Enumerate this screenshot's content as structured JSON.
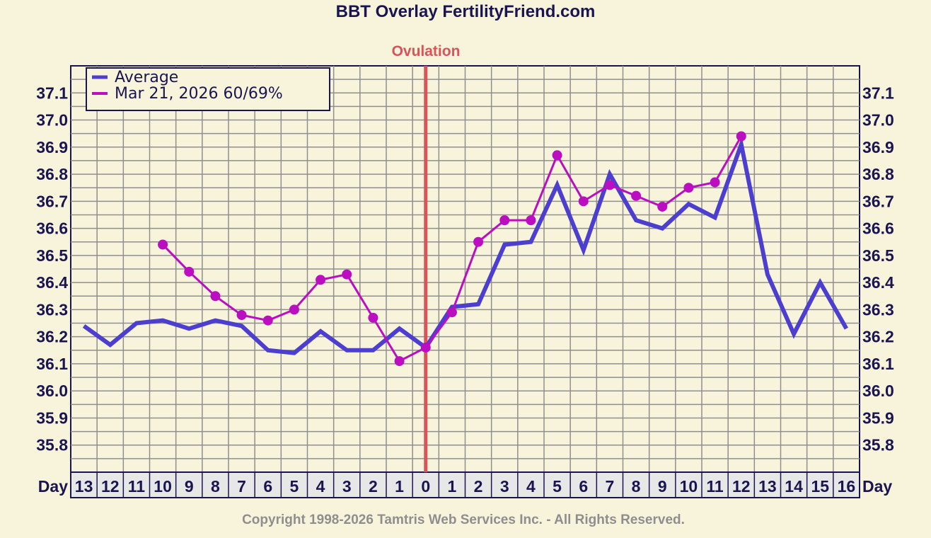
{
  "chart_data": {
    "type": "line",
    "title": "BBT Overlay FertilityFriend.com",
    "ovulation_label": "Ovulation",
    "ovulation_day": "0",
    "x_axis_label": "Day",
    "categories": [
      "13",
      "12",
      "11",
      "10",
      "9",
      "8",
      "7",
      "6",
      "5",
      "4",
      "3",
      "2",
      "1",
      "0",
      "1",
      "2",
      "3",
      "4",
      "5",
      "6",
      "7",
      "8",
      "9",
      "10",
      "11",
      "12",
      "13",
      "14",
      "15",
      "16"
    ],
    "y_ticks": [
      "37.1",
      "37.0",
      "36.9",
      "36.8",
      "36.7",
      "36.6",
      "36.5",
      "36.4",
      "36.3",
      "36.2",
      "36.1",
      "36.0",
      "35.9",
      "35.8"
    ],
    "ylim": [
      35.7,
      37.2
    ],
    "series": [
      {
        "name": "Average",
        "color": "#4c3fd0",
        "values": [
          36.24,
          36.17,
          36.25,
          36.26,
          36.23,
          36.26,
          36.24,
          36.15,
          36.14,
          36.22,
          36.15,
          36.15,
          36.23,
          36.16,
          36.31,
          36.32,
          36.54,
          36.55,
          36.76,
          36.52,
          36.8,
          36.63,
          36.6,
          36.69,
          36.64,
          36.91,
          36.43,
          36.21,
          36.4,
          36.23
        ]
      },
      {
        "name": "Mar 21, 2026 60/69%",
        "color": "#bb0ec0",
        "values": [
          null,
          null,
          null,
          36.54,
          36.44,
          36.35,
          36.28,
          36.26,
          36.3,
          36.41,
          36.43,
          36.27,
          36.11,
          36.16,
          36.29,
          36.55,
          36.63,
          36.63,
          36.87,
          36.7,
          36.76,
          36.72,
          36.68,
          36.75,
          36.77,
          36.94,
          null,
          null,
          null,
          null
        ]
      }
    ],
    "copyright": "Copyright 1998-2026 Tamtris Web Services Inc. - All Rights Reserved."
  }
}
